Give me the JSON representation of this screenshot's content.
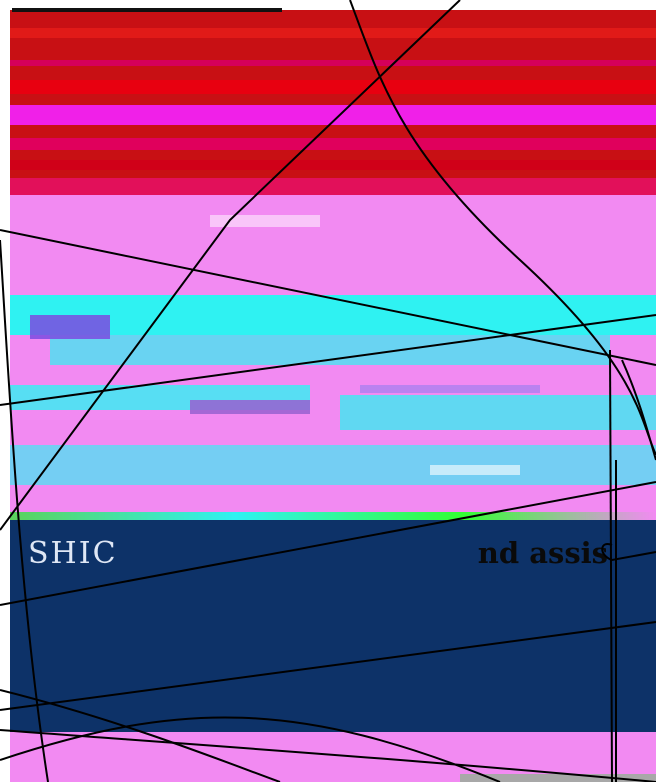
{
  "banner": {
    "left_text": "SHIC",
    "right_text": "nd assis"
  },
  "colors": {
    "red": "#c81014",
    "magenta": "#f28af2",
    "cyan": "#2ff2f2",
    "navy": "#0d3268",
    "banner_left_text": "#dfe7f5",
    "banner_right_text": "#0a0a0a",
    "lines": "#000000"
  }
}
